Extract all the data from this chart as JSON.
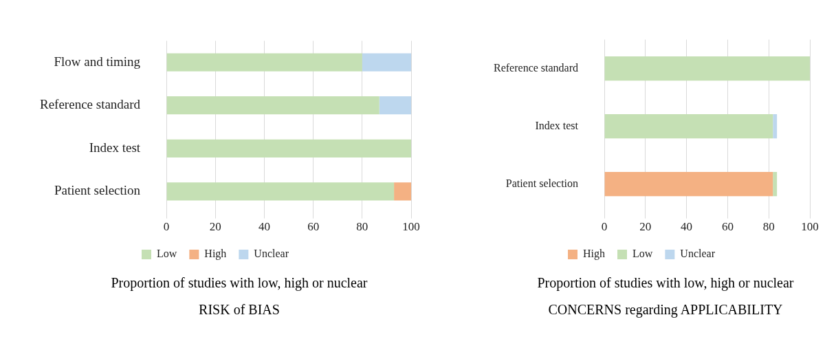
{
  "chart_data": [
    {
      "type": "bar",
      "orientation": "horizontal",
      "stacked": true,
      "title": "Proportion of studies with low, high or nuclear",
      "subtitle": "RISK of BIAS",
      "categories": [
        "Flow and timing",
        "Reference standard",
        "Index test",
        "Patient selection"
      ],
      "series": [
        {
          "name": "Low",
          "color": "#c5e0b4",
          "values": [
            80,
            87,
            100,
            93
          ]
        },
        {
          "name": "High",
          "color": "#f4b183",
          "values": [
            0,
            0,
            0,
            7
          ]
        },
        {
          "name": "Unclear",
          "color": "#bdd7ee",
          "values": [
            20,
            13,
            0,
            0
          ]
        }
      ],
      "xlim": [
        0,
        100
      ],
      "xticks": [
        0,
        20,
        40,
        60,
        80,
        100
      ],
      "grid": "x",
      "legend": "bottom"
    },
    {
      "type": "bar",
      "orientation": "horizontal",
      "stacked": true,
      "title": "Proportion of studies with low, high or nuclear",
      "subtitle": "CONCERNS regarding APPLICABILITY",
      "categories": [
        "Reference standard",
        "Index test",
        "Patient selection"
      ],
      "series": [
        {
          "name": "High",
          "color": "#f4b183",
          "values": [
            0,
            0,
            82
          ]
        },
        {
          "name": "Low",
          "color": "#c5e0b4",
          "values": [
            100,
            82,
            2
          ]
        },
        {
          "name": "Unclear",
          "color": "#bdd7ee",
          "values": [
            0,
            2,
            0
          ]
        }
      ],
      "xlim": [
        0,
        100
      ],
      "xticks": [
        0,
        20,
        40,
        60,
        80,
        100
      ],
      "grid": "x",
      "legend": "bottom"
    }
  ]
}
